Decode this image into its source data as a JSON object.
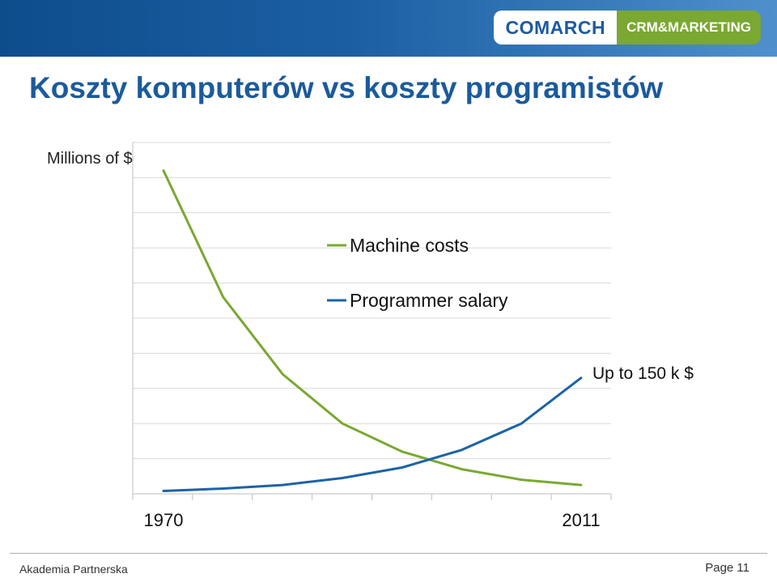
{
  "brand": {
    "logo_left": "COMARCH",
    "logo_right": "CRM&MARKETING",
    "accent_blue": "#1b5a9c",
    "accent_green": "#7aa832"
  },
  "slide": {
    "title": "Koszty komputerów vs koszty programistów"
  },
  "chart_data": {
    "type": "line",
    "ylabel": "Millions of $",
    "x": [
      1970,
      "",
      "",
      "",
      "",
      "",
      "",
      2011
    ],
    "x_tick_labels": [
      "1970",
      "2011"
    ],
    "grid": true,
    "legend_position": "center",
    "series": [
      {
        "name": "Machine costs",
        "color": "#7aa832",
        "values": [
          9.2,
          5.6,
          3.4,
          2.0,
          1.2,
          0.7,
          0.4,
          0.25
        ]
      },
      {
        "name": "Programmer salary",
        "color": "#1c63a6",
        "values": [
          0.08,
          0.15,
          0.25,
          0.45,
          0.75,
          1.25,
          2.0,
          3.3
        ]
      }
    ],
    "ylim": [
      0,
      10
    ],
    "annotation": "Up to 150 k $"
  },
  "footer": {
    "left": "Akademia Partnerska",
    "right": "Page 11"
  }
}
